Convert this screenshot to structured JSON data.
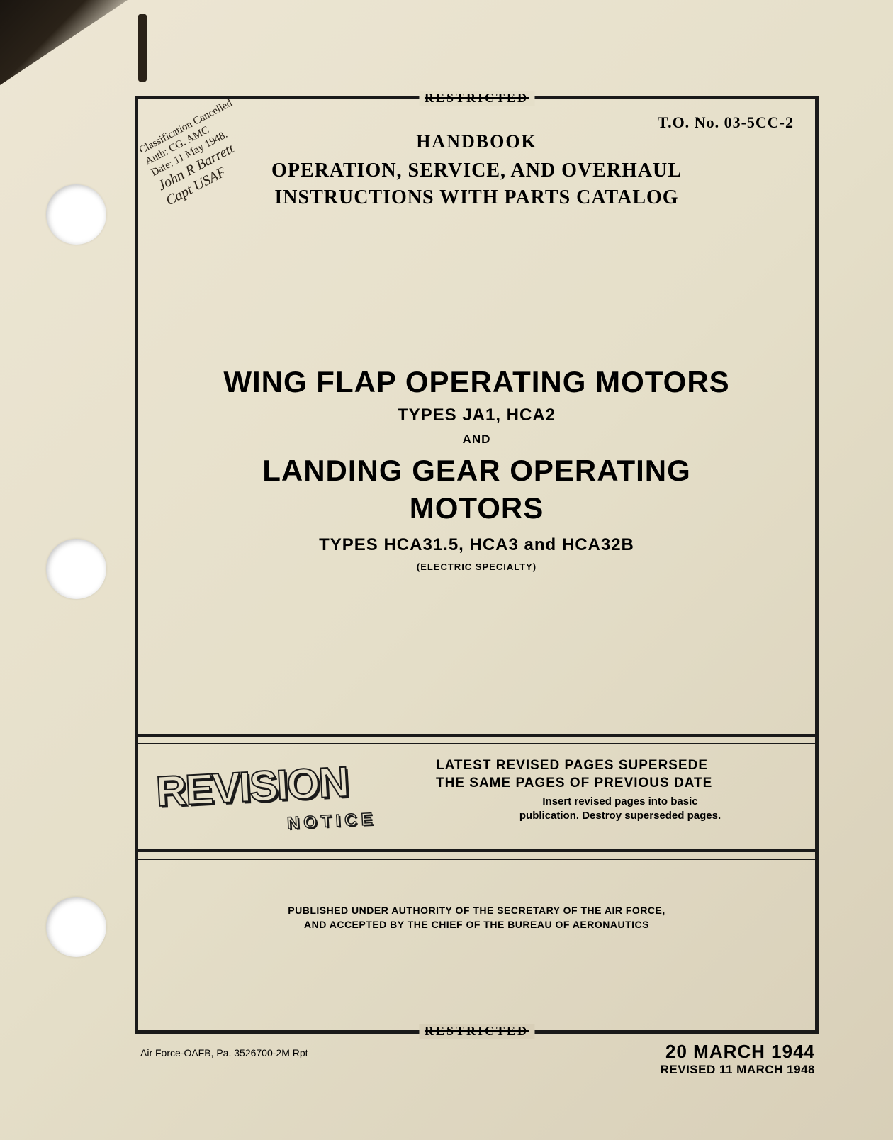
{
  "classification": {
    "restricted_label": "RESTRICTED",
    "stamp_line1": "Classification Cancelled",
    "stamp_line2": "Auth: CG. AMC",
    "stamp_line3": "Date: 11 May 1948.",
    "stamp_signature": "John R Barrett",
    "stamp_sig2": "Capt USAF"
  },
  "header": {
    "to_number": "T.O. No. 03-5CC-2",
    "handbook": "HANDBOOK",
    "subtitle_line1": "OPERATION, SERVICE, AND OVERHAUL",
    "subtitle_line2": "INSTRUCTIONS WITH PARTS CATALOG"
  },
  "main": {
    "title1": "WING FLAP OPERATING MOTORS",
    "types1": "TYPES JA1, HCA2",
    "and": "AND",
    "title2_line1": "LANDING GEAR OPERATING",
    "title2_line2": "MOTORS",
    "types2": "TYPES HCA31.5, HCA3 and HCA32B",
    "electric": "(ELECTRIC SPECIALTY)"
  },
  "revision": {
    "word": "REVISION",
    "notice": "NOTICE",
    "big_line1": "LATEST REVISED PAGES SUPERSEDE",
    "big_line2": "THE SAME PAGES OF PREVIOUS DATE",
    "small_line1": "Insert revised pages into basic",
    "small_line2": "publication. Destroy superseded pages."
  },
  "authority": {
    "line1": "PUBLISHED UNDER AUTHORITY OF THE SECRETARY OF THE AIR FORCE,",
    "line2": "AND ACCEPTED BY THE CHIEF OF THE BUREAU OF AERONAUTICS"
  },
  "footer": {
    "left": "Air Force-OAFB, Pa. 3526700-2M Rpt",
    "date_main": "20 MARCH 1944",
    "date_rev": "REVISED 11 MARCH 1948"
  },
  "colors": {
    "paper_light": "#ede6d4",
    "paper_mid": "#e5dfc9",
    "paper_dark": "#d8cfb8",
    "ink": "#1a1a1a",
    "hole": "#ffffff"
  }
}
